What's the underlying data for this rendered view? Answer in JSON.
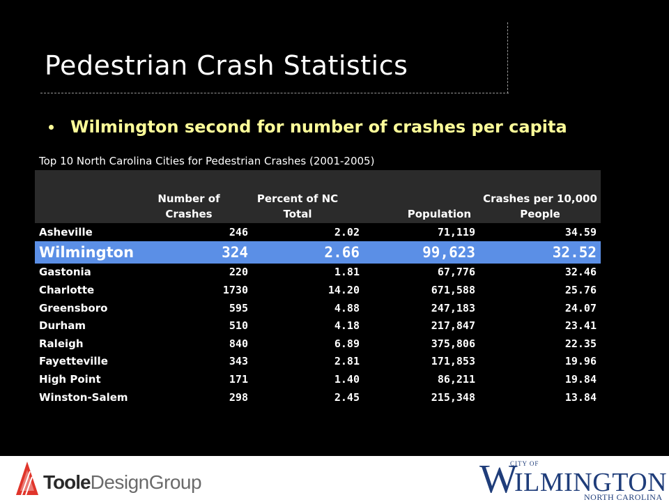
{
  "slide": {
    "title": "Pedestrian Crash Statistics",
    "bullet": "Wilmington second for number of crashes per capita",
    "caption": "Top 10 North Carolina Cities for Pedestrian Crashes (2001-2005)"
  },
  "table": {
    "headers": [
      "",
      "Number of Crashes",
      "Percent of NC Total",
      "Population",
      "Crashes per 10,000 People"
    ],
    "highlight_row": 1,
    "highlight_color": "#5b8fe6",
    "rows": [
      {
        "city": "Asheville",
        "crashes": "246",
        "percent": "2.02",
        "population": "71,119",
        "per_capita": "34.59"
      },
      {
        "city": "Wilmington",
        "crashes": "324",
        "percent": "2.66",
        "population": "99,623",
        "per_capita": "32.52"
      },
      {
        "city": "Gastonia",
        "crashes": "220",
        "percent": "1.81",
        "population": "67,776",
        "per_capita": "32.46"
      },
      {
        "city": "Charlotte",
        "crashes": "1730",
        "percent": "14.20",
        "population": "671,588",
        "per_capita": "25.76"
      },
      {
        "city": "Greensboro",
        "crashes": "595",
        "percent": "4.88",
        "population": "247,183",
        "per_capita": "24.07"
      },
      {
        "city": "Durham",
        "crashes": "510",
        "percent": "4.18",
        "population": "217,847",
        "per_capita": "23.41"
      },
      {
        "city": "Raleigh",
        "crashes": "840",
        "percent": "6.89",
        "population": "375,806",
        "per_capita": "22.35"
      },
      {
        "city": "Fayetteville",
        "crashes": "343",
        "percent": "2.81",
        "population": "171,853",
        "per_capita": "19.96"
      },
      {
        "city": "High Point",
        "crashes": "171",
        "percent": "1.40",
        "population": "86,211",
        "per_capita": "19.84"
      },
      {
        "city": "Winston-Salem",
        "crashes": "298",
        "percent": "2.45",
        "population": "215,348",
        "per_capita": "13.84"
      }
    ]
  },
  "footer": {
    "toole_logo": {
      "word_bold": "Toole",
      "word_light": "DesignGroup",
      "icon": "mountain-triangle-icon",
      "accent": "#e0352b"
    },
    "city_logo": {
      "city_of": "CITY OF",
      "initial": "W",
      "rest": "ILMINGTON",
      "state": "NORTH CAROLINA",
      "color": "#1f3d7a"
    }
  }
}
